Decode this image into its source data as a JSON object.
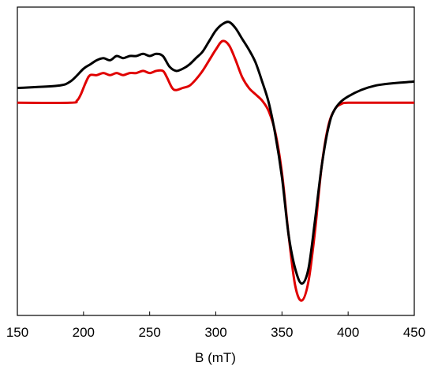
{
  "chart_data": {
    "type": "line",
    "title": "",
    "xlabel": "B (mT)",
    "ylabel": "",
    "xlim": [
      150,
      450
    ],
    "ylim": [
      -1.0,
      0.45
    ],
    "xticks": [
      "150",
      "200",
      "250",
      "300",
      "350",
      "400",
      "450"
    ],
    "grid": false,
    "legend": "none",
    "series": [
      {
        "color": "#000000",
        "x": [
          150,
          180,
          190,
          200,
          205,
          210,
          215,
          220,
          225,
          230,
          235,
          240,
          245,
          250,
          255,
          260,
          265,
          270,
          275,
          280,
          285,
          290,
          295,
          300,
          305,
          310,
          315,
          320,
          325,
          330,
          335,
          340,
          345,
          350,
          355,
          360,
          365,
          370,
          375,
          380,
          385,
          390,
          400,
          420,
          450
        ],
        "y": [
          0.07,
          0.08,
          0.1,
          0.16,
          0.18,
          0.2,
          0.21,
          0.2,
          0.22,
          0.21,
          0.22,
          0.22,
          0.23,
          0.22,
          0.23,
          0.22,
          0.17,
          0.15,
          0.16,
          0.18,
          0.21,
          0.24,
          0.29,
          0.34,
          0.37,
          0.38,
          0.35,
          0.3,
          0.25,
          0.19,
          0.1,
          0.0,
          -0.15,
          -0.35,
          -0.62,
          -0.78,
          -0.85,
          -0.78,
          -0.55,
          -0.3,
          -0.12,
          -0.03,
          0.03,
          0.08,
          0.1
        ]
      },
      {
        "color": "#e00000",
        "x": [
          150,
          190,
          195,
          198,
          202,
          205,
          210,
          215,
          220,
          225,
          230,
          235,
          240,
          245,
          250,
          255,
          260,
          263,
          267,
          270,
          275,
          280,
          285,
          290,
          295,
          300,
          305,
          310,
          315,
          320,
          325,
          330,
          335,
          340,
          345,
          350,
          355,
          360,
          365,
          370,
          375,
          380,
          385,
          390,
          395,
          400,
          420,
          450
        ],
        "y": [
          0.0,
          0.0,
          0.01,
          0.04,
          0.1,
          0.13,
          0.13,
          0.14,
          0.13,
          0.14,
          0.13,
          0.14,
          0.14,
          0.15,
          0.14,
          0.15,
          0.15,
          0.12,
          0.07,
          0.06,
          0.07,
          0.08,
          0.11,
          0.15,
          0.2,
          0.25,
          0.29,
          0.27,
          0.2,
          0.12,
          0.07,
          0.04,
          0.01,
          -0.04,
          -0.14,
          -0.33,
          -0.62,
          -0.86,
          -0.93,
          -0.84,
          -0.6,
          -0.3,
          -0.11,
          -0.03,
          -0.005,
          0.0,
          0.0,
          0.0
        ]
      }
    ]
  }
}
